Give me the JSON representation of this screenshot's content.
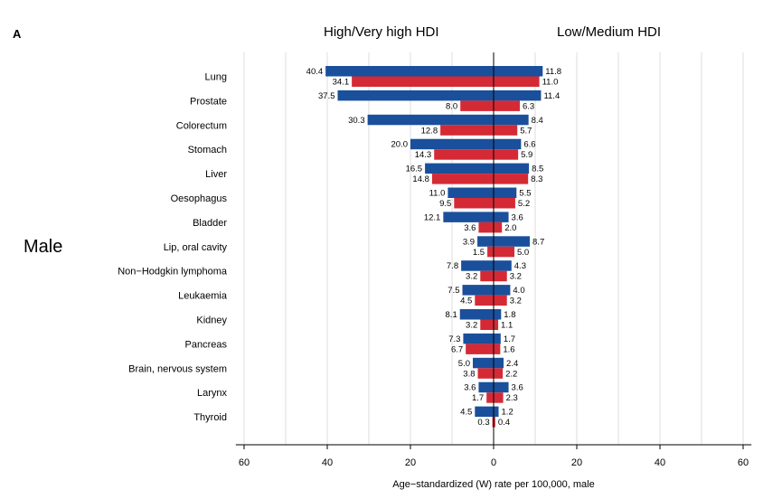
{
  "panel_label": "A",
  "side_label": "Male",
  "chart_data": {
    "type": "bar",
    "orientation": "horizontal-diverging",
    "xlabel": "Age−standardized (W) rate per 100,000, male",
    "xlim": [
      -60,
      60
    ],
    "xticks": [
      60,
      40,
      20,
      0,
      20,
      40,
      60
    ],
    "grid": true,
    "headers": {
      "left": "High/Very high HDI",
      "right": "Low/Medium HDI"
    },
    "colors": {
      "incidence": "#1a4f9c",
      "mortality": "#d42a35"
    },
    "categories": [
      "Lung",
      "Prostate",
      "Colorectum",
      "Stomach",
      "Liver",
      "Oesophagus",
      "Bladder",
      "Lip, oral cavity",
      "Non−Hodgkin lymphoma",
      "Leukaemia",
      "Kidney",
      "Pancreas",
      "Brain, nervous system",
      "Larynx",
      "Thyroid"
    ],
    "left": {
      "incidence": [
        40.4,
        37.5,
        30.3,
        20.0,
        16.5,
        11.0,
        12.1,
        3.9,
        7.8,
        7.5,
        8.1,
        7.3,
        5.0,
        3.6,
        4.5
      ],
      "mortality": [
        34.1,
        8.0,
        12.8,
        14.3,
        14.8,
        9.5,
        3.6,
        1.5,
        3.2,
        4.5,
        3.2,
        6.7,
        3.8,
        1.7,
        0.3
      ]
    },
    "right": {
      "incidence": [
        11.8,
        11.4,
        8.4,
        6.6,
        8.5,
        5.5,
        3.6,
        8.7,
        4.3,
        4.0,
        1.8,
        1.7,
        2.4,
        3.6,
        1.2
      ],
      "mortality": [
        11.0,
        6.3,
        5.7,
        5.9,
        8.3,
        5.2,
        2.0,
        5.0,
        3.2,
        3.2,
        1.1,
        1.6,
        2.2,
        2.3,
        0.4
      ]
    }
  }
}
